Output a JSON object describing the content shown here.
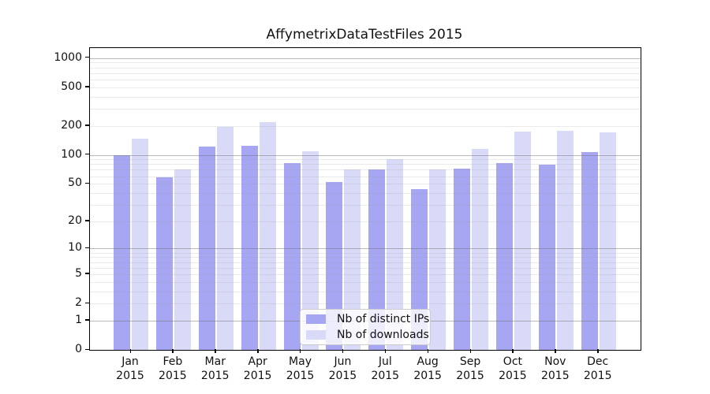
{
  "chart_data": {
    "type": "bar",
    "title": "AffymetrixDataTestFiles 2015",
    "months": [
      "Jan",
      "Feb",
      "Mar",
      "Apr",
      "May",
      "Jun",
      "Jul",
      "Aug",
      "Sep",
      "Oct",
      "Nov",
      "Dec"
    ],
    "year": "2015",
    "series": [
      {
        "name": "Nb of distinct IPs",
        "color": "#a6a6f3",
        "values": [
          100,
          58,
          123,
          125,
          82,
          52,
          70,
          44,
          72,
          82,
          79,
          107
        ]
      },
      {
        "name": "Nb of downloads",
        "color": "#d9d9f8",
        "values": [
          148,
          70,
          195,
          220,
          110,
          70,
          90,
          70,
          116,
          175,
          178,
          172
        ]
      }
    ],
    "yscale": "log1p",
    "ylim": [
      0,
      1265
    ],
    "yticks": [
      1000,
      500,
      200,
      100,
      50,
      20,
      10,
      5,
      2,
      1,
      0
    ],
    "grid": true,
    "grid_major_lines": [
      1,
      10,
      100,
      1000
    ],
    "grid_minor_lines": [
      2,
      3,
      4,
      5,
      6,
      7,
      8,
      9,
      20,
      30,
      40,
      50,
      60,
      70,
      80,
      90,
      200,
      300,
      400,
      500,
      600,
      700,
      800,
      900
    ],
    "legend_position": "lower center",
    "xlabel": "",
    "ylabel": ""
  }
}
